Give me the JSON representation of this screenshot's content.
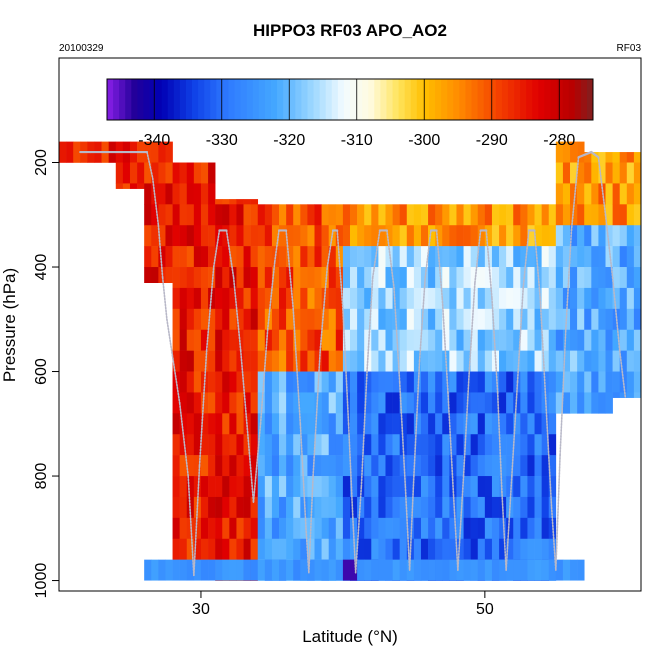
{
  "chart_data": {
    "type": "heatmap",
    "title": "HIPPO3 RF03 APO_AO2",
    "subtitle_left": "20100329",
    "subtitle_right": "RF03",
    "xlabel": "Latitude (°N)",
    "ylabel": "Pressure (hPa)",
    "xlim": [
      20,
      61
    ],
    "ylim": [
      1020,
      0
    ],
    "x_ticks": [
      30,
      50
    ],
    "x_tick_labels": [
      "30",
      "50"
    ],
    "y_ticks": [
      200,
      400,
      600,
      800,
      1000
    ],
    "y_tick_labels": [
      "200",
      "400",
      "600",
      "800",
      "1000"
    ],
    "colorbar": {
      "range": [
        -347,
        -275
      ],
      "ticks": [
        -340,
        -330,
        -320,
        -310,
        -300,
        -290,
        -280
      ],
      "tick_labels": [
        "-340",
        "-330",
        "-320",
        "-310",
        "-300",
        "-290",
        "-280"
      ],
      "stops": [
        [
          -347,
          "#8a1fe8"
        ],
        [
          -343,
          "#23009a"
        ],
        [
          -339,
          "#0000b4"
        ],
        [
          -334,
          "#1042e8"
        ],
        [
          -329,
          "#2f7bff"
        ],
        [
          -322,
          "#44a8ff"
        ],
        [
          -316,
          "#a6dcff"
        ],
        [
          -312,
          "#f2fbff"
        ],
        [
          -308,
          "#fffbe0"
        ],
        [
          -304,
          "#ffe560"
        ],
        [
          -300,
          "#ffbf00"
        ],
        [
          -295,
          "#ff8c00"
        ],
        [
          -289,
          "#f44000"
        ],
        [
          -283,
          "#e00000"
        ],
        [
          -278,
          "#b80000"
        ],
        [
          -275,
          "#802020"
        ]
      ]
    },
    "curtain": {
      "pressure_levels": [
        180,
        220,
        260,
        300,
        340,
        380,
        420,
        460,
        500,
        540,
        580,
        620,
        660,
        700,
        740,
        780,
        820,
        860,
        900,
        940,
        980
      ],
      "lat_start": 20,
      "lat_step": 0.5,
      "columns": [
        {
          "lat_range": [
            20,
            24
          ],
          "top": 160,
          "bottom": 200
        },
        {
          "lat_range": [
            24,
            26
          ],
          "top": 160,
          "bottom": 250
        },
        {
          "lat_range": [
            26,
            28
          ],
          "top": 160,
          "bottom": 430
        },
        {
          "lat_range": [
            28,
            31
          ],
          "top": 200,
          "bottom": 960
        },
        {
          "lat_range": [
            31,
            37
          ],
          "top": 270,
          "bottom": 1000
        },
        {
          "lat_range": [
            37,
            42
          ],
          "top": 270,
          "bottom": 1000
        },
        {
          "lat_range": [
            42,
            52
          ],
          "top": 270,
          "bottom": 1000
        },
        {
          "lat_range": [
            52,
            55
          ],
          "top": 230,
          "bottom": 1000
        },
        {
          "lat_range": [
            55,
            57
          ],
          "top": 160,
          "bottom": 1000
        },
        {
          "lat_range": [
            57,
            59
          ],
          "top": 180,
          "bottom": 680
        },
        {
          "lat_range": [
            59,
            61
          ],
          "top": 180,
          "bottom": 650
        }
      ],
      "regimes": [
        {
          "lat_range": [
            20,
            34
          ],
          "p_range": [
            150,
            1000
          ],
          "value": -285
        },
        {
          "lat_range": [
            34,
            40
          ],
          "p_range": [
            280,
            600
          ],
          "value": -290
        },
        {
          "lat_range": [
            34,
            40
          ],
          "p_range": [
            600,
            1000
          ],
          "value": -322
        },
        {
          "lat_range": [
            40,
            55
          ],
          "p_range": [
            280,
            380
          ],
          "value": -296
        },
        {
          "lat_range": [
            40,
            55
          ],
          "p_range": [
            380,
            600
          ],
          "value": -317
        },
        {
          "lat_range": [
            40,
            55
          ],
          "p_range": [
            600,
            1000
          ],
          "value": -330
        },
        {
          "lat_range": [
            55,
            61
          ],
          "p_range": [
            150,
            320
          ],
          "value": -296
        },
        {
          "lat_range": [
            55,
            61
          ],
          "p_range": [
            320,
            700
          ],
          "value": -322
        }
      ],
      "bottom_row": {
        "p_range": [
          960,
          1000
        ],
        "value": -325
      }
    },
    "flight_track": {
      "color": "#b8b8c8",
      "points": [
        [
          21.5,
          180
        ],
        [
          22.2,
          180
        ],
        [
          24.0,
          180
        ],
        [
          26.2,
          180
        ],
        [
          26.6,
          230
        ],
        [
          27.0,
          320
        ],
        [
          27.3,
          420
        ],
        [
          27.6,
          500
        ],
        [
          28.5,
          660
        ],
        [
          29.1,
          800
        ],
        [
          29.5,
          990
        ],
        [
          29.9,
          780
        ],
        [
          30.4,
          560
        ],
        [
          30.9,
          400
        ],
        [
          31.3,
          330
        ],
        [
          31.8,
          330
        ],
        [
          32.3,
          420
        ],
        [
          32.8,
          560
        ],
        [
          33.3,
          720
        ],
        [
          33.7,
          850
        ],
        [
          34.2,
          700
        ],
        [
          34.7,
          520
        ],
        [
          35.2,
          390
        ],
        [
          35.5,
          330
        ],
        [
          36.0,
          330
        ],
        [
          36.5,
          480
        ],
        [
          37.0,
          700
        ],
        [
          37.4,
          900
        ],
        [
          37.6,
          985
        ],
        [
          37.9,
          800
        ],
        [
          38.4,
          560
        ],
        [
          38.9,
          400
        ],
        [
          39.3,
          330
        ],
        [
          39.6,
          330
        ],
        [
          40.0,
          480
        ],
        [
          40.4,
          700
        ],
        [
          40.7,
          880
        ],
        [
          40.9,
          985
        ],
        [
          41.3,
          820
        ],
        [
          41.7,
          600
        ],
        [
          42.1,
          420
        ],
        [
          42.6,
          330
        ],
        [
          43.1,
          330
        ],
        [
          43.6,
          440
        ],
        [
          44.0,
          620
        ],
        [
          44.4,
          820
        ],
        [
          44.7,
          980
        ],
        [
          45.0,
          800
        ],
        [
          45.4,
          580
        ],
        [
          45.8,
          420
        ],
        [
          46.2,
          330
        ],
        [
          46.6,
          330
        ],
        [
          47.0,
          460
        ],
        [
          47.4,
          640
        ],
        [
          47.8,
          840
        ],
        [
          48.1,
          980
        ],
        [
          48.5,
          800
        ],
        [
          48.9,
          600
        ],
        [
          49.3,
          430
        ],
        [
          49.7,
          330
        ],
        [
          50.1,
          330
        ],
        [
          50.5,
          460
        ],
        [
          50.9,
          640
        ],
        [
          51.2,
          830
        ],
        [
          51.5,
          980
        ],
        [
          51.9,
          800
        ],
        [
          52.3,
          620
        ],
        [
          52.7,
          440
        ],
        [
          53.1,
          330
        ],
        [
          53.5,
          330
        ],
        [
          53.9,
          460
        ],
        [
          54.3,
          660
        ],
        [
          54.7,
          860
        ],
        [
          55.0,
          980
        ],
        [
          55.3,
          760
        ],
        [
          55.7,
          520
        ],
        [
          56.1,
          330
        ],
        [
          56.6,
          190
        ],
        [
          57.5,
          180
        ],
        [
          58.0,
          190
        ],
        [
          58.5,
          300
        ],
        [
          59.0,
          420
        ],
        [
          59.5,
          560
        ],
        [
          59.9,
          650
        ]
      ]
    }
  }
}
